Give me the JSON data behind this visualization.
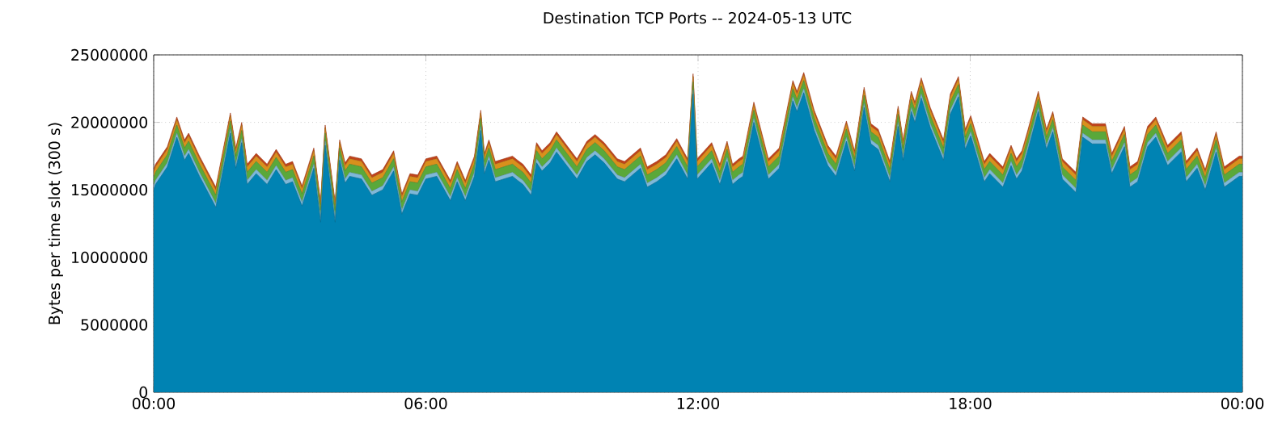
{
  "chart_data": {
    "type": "area",
    "stacked": true,
    "title": "Destination TCP Ports -- 2024-05-13 UTC",
    "ylabel": "Bytes per time slot (300 s)",
    "x": [
      0,
      0.04,
      0.3,
      0.51,
      0.68,
      0.77,
      1.01,
      1.37,
      1.69,
      1.81,
      1.94,
      2.06,
      2.26,
      2.5,
      2.7,
      2.91,
      3.06,
      3.27,
      3.53,
      3.68,
      3.78,
      4.0,
      4.1,
      4.22,
      4.32,
      4.58,
      4.81,
      5.05,
      5.29,
      5.47,
      5.65,
      5.82,
      6.0,
      6.24,
      6.54,
      6.69,
      6.87,
      7.07,
      7.21,
      7.29,
      7.39,
      7.53,
      7.91,
      8.02,
      8.14,
      8.32,
      8.44,
      8.56,
      8.74,
      8.88,
      9.33,
      9.55,
      9.73,
      9.93,
      10.22,
      10.38,
      10.73,
      10.88,
      11.09,
      11.29,
      11.53,
      11.77,
      11.89,
      11.98,
      12.3,
      12.48,
      12.64,
      12.76,
      12.9,
      12.99,
      13.23,
      13.55,
      13.79,
      14.09,
      14.18,
      14.33,
      14.56,
      14.86,
      15.04,
      15.27,
      15.45,
      15.66,
      15.81,
      15.97,
      16.23,
      16.41,
      16.52,
      16.7,
      16.78,
      16.92,
      17.12,
      17.41,
      17.56,
      17.74,
      17.89,
      18.01,
      18.31,
      18.43,
      18.72,
      18.9,
      19.02,
      19.14,
      19.26,
      19.5,
      19.68,
      19.82,
      20.03,
      20.33,
      20.48,
      20.69,
      20.98,
      21.12,
      21.4,
      21.52,
      21.69,
      21.91,
      22.09,
      22.35,
      22.65,
      22.76,
      23.0,
      23.18,
      23.42,
      23.6,
      23.93,
      24.0
    ],
    "series": [
      {
        "color": "#0083b3",
        "values": [
          15000000,
          15400000,
          16700000,
          18900000,
          17200000,
          17700000,
          16000000,
          13700000,
          19200000,
          16600000,
          18500000,
          15400000,
          16200000,
          15400000,
          16500000,
          15400000,
          15600000,
          13800000,
          16600000,
          12600000,
          18300000,
          12600000,
          17200000,
          15500000,
          16000000,
          15800000,
          14600000,
          15000000,
          16400000,
          13200000,
          14700000,
          14600000,
          15800000,
          16000000,
          14200000,
          15600000,
          14200000,
          16000000,
          19400000,
          16200000,
          17200000,
          15600000,
          16000000,
          15700000,
          15400000,
          14600000,
          17000000,
          16400000,
          17000000,
          17800000,
          15800000,
          17100000,
          17600000,
          17000000,
          15800000,
          15600000,
          16600000,
          15200000,
          15600000,
          16100000,
          17300000,
          15800000,
          22100000,
          15800000,
          17000000,
          15400000,
          17100000,
          15400000,
          15800000,
          16000000,
          20000000,
          15800000,
          16600000,
          21600000,
          20800000,
          22200000,
          19400000,
          16800000,
          16000000,
          18600000,
          16400000,
          21100000,
          18400000,
          18000000,
          15600000,
          19700000,
          17200000,
          20800000,
          20000000,
          21800000,
          19600000,
          17200000,
          20600000,
          21900000,
          18000000,
          19000000,
          15600000,
          16200000,
          15200000,
          16800000,
          15800000,
          16400000,
          17800000,
          20800000,
          18000000,
          19300000,
          15800000,
          14800000,
          18900000,
          18400000,
          18400000,
          16200000,
          18200000,
          15200000,
          15600000,
          18200000,
          18900000,
          16800000,
          17800000,
          15600000,
          16600000,
          15000000,
          17800000,
          15200000,
          16000000,
          16000000
        ]
      },
      {
        "color": "#7fb8d8",
        "values": [
          300000,
          300000,
          300000,
          300000,
          300000,
          300000,
          300000,
          300000,
          300000,
          300000,
          300000,
          300000,
          300000,
          300000,
          300000,
          300000,
          300000,
          300000,
          300000,
          300000,
          300000,
          300000,
          300000,
          300000,
          300000,
          300000,
          300000,
          300000,
          300000,
          300000,
          300000,
          300000,
          300000,
          300000,
          300000,
          300000,
          300000,
          300000,
          300000,
          300000,
          300000,
          300000,
          300000,
          300000,
          300000,
          300000,
          300000,
          300000,
          300000,
          300000,
          300000,
          300000,
          300000,
          300000,
          300000,
          300000,
          300000,
          300000,
          300000,
          300000,
          300000,
          300000,
          300000,
          300000,
          300000,
          300000,
          300000,
          300000,
          300000,
          300000,
          300000,
          300000,
          300000,
          300000,
          300000,
          300000,
          300000,
          300000,
          300000,
          300000,
          300000,
          300000,
          300000,
          300000,
          300000,
          300000,
          300000,
          300000,
          300000,
          300000,
          300000,
          300000,
          300000,
          300000,
          300000,
          300000,
          300000,
          300000,
          300000,
          300000,
          300000,
          300000,
          300000,
          300000,
          300000,
          300000,
          300000,
          300000,
          300000,
          300000,
          300000,
          300000,
          300000,
          300000,
          300000,
          300000,
          300000,
          300000,
          300000,
          300000,
          300000,
          300000,
          300000,
          300000,
          300000,
          300000
        ]
      },
      {
        "color": "#5aa83a",
        "values": [
          600000,
          600000,
          600000,
          600000,
          600000,
          600000,
          600000,
          600000,
          600000,
          600000,
          600000,
          600000,
          600000,
          600000,
          600000,
          600000,
          600000,
          600000,
          600000,
          600000,
          600000,
          600000,
          600000,
          600000,
          600000,
          600000,
          600000,
          600000,
          600000,
          600000,
          600000,
          600000,
          600000,
          600000,
          600000,
          600000,
          600000,
          600000,
          600000,
          600000,
          600000,
          600000,
          600000,
          600000,
          600000,
          600000,
          600000,
          600000,
          600000,
          600000,
          600000,
          600000,
          600000,
          600000,
          600000,
          600000,
          600000,
          600000,
          600000,
          600000,
          600000,
          600000,
          600000,
          600000,
          600000,
          600000,
          600000,
          600000,
          600000,
          600000,
          600000,
          600000,
          600000,
          600000,
          600000,
          600000,
          600000,
          600000,
          600000,
          600000,
          600000,
          600000,
          600000,
          600000,
          600000,
          600000,
          600000,
          600000,
          600000,
          600000,
          600000,
          600000,
          600000,
          600000,
          600000,
          600000,
          600000,
          600000,
          600000,
          600000,
          600000,
          600000,
          600000,
          600000,
          600000,
          600000,
          600000,
          600000,
          600000,
          600000,
          600000,
          600000,
          600000,
          600000,
          600000,
          600000,
          600000,
          600000,
          600000,
          600000,
          600000,
          600000,
          600000,
          600000,
          600000,
          600000
        ]
      },
      {
        "color": "#d9901c",
        "values": [
          400000,
          400000,
          400000,
          400000,
          400000,
          400000,
          400000,
          400000,
          400000,
          400000,
          400000,
          400000,
          400000,
          400000,
          400000,
          400000,
          400000,
          400000,
          400000,
          400000,
          400000,
          400000,
          400000,
          400000,
          400000,
          400000,
          400000,
          400000,
          400000,
          400000,
          400000,
          400000,
          400000,
          400000,
          400000,
          400000,
          400000,
          400000,
          400000,
          400000,
          400000,
          400000,
          400000,
          400000,
          400000,
          400000,
          400000,
          400000,
          400000,
          400000,
          400000,
          400000,
          400000,
          400000,
          400000,
          400000,
          400000,
          400000,
          400000,
          400000,
          400000,
          400000,
          400000,
          400000,
          400000,
          400000,
          400000,
          400000,
          400000,
          400000,
          400000,
          400000,
          400000,
          400000,
          400000,
          400000,
          400000,
          400000,
          400000,
          400000,
          400000,
          400000,
          400000,
          400000,
          400000,
          400000,
          400000,
          400000,
          400000,
          400000,
          400000,
          400000,
          400000,
          400000,
          400000,
          400000,
          400000,
          400000,
          400000,
          400000,
          400000,
          400000,
          400000,
          400000,
          400000,
          400000,
          400000,
          400000,
          400000,
          400000,
          400000,
          400000,
          400000,
          400000,
          400000,
          400000,
          400000,
          400000,
          400000,
          400000,
          400000,
          400000,
          400000,
          400000,
          400000,
          400000
        ]
      },
      {
        "color": "#c0431a",
        "values": [
          200000,
          200000,
          200000,
          200000,
          200000,
          200000,
          200000,
          200000,
          200000,
          200000,
          200000,
          200000,
          200000,
          200000,
          200000,
          200000,
          200000,
          200000,
          200000,
          200000,
          200000,
          200000,
          200000,
          200000,
          200000,
          200000,
          200000,
          200000,
          200000,
          200000,
          200000,
          200000,
          200000,
          200000,
          200000,
          200000,
          200000,
          200000,
          200000,
          200000,
          200000,
          200000,
          200000,
          200000,
          200000,
          200000,
          200000,
          200000,
          200000,
          200000,
          200000,
          200000,
          200000,
          200000,
          200000,
          200000,
          200000,
          200000,
          200000,
          200000,
          200000,
          200000,
          200000,
          200000,
          200000,
          200000,
          200000,
          200000,
          200000,
          200000,
          200000,
          200000,
          200000,
          200000,
          200000,
          200000,
          200000,
          200000,
          200000,
          200000,
          200000,
          200000,
          200000,
          200000,
          200000,
          200000,
          200000,
          200000,
          200000,
          200000,
          200000,
          200000,
          200000,
          200000,
          200000,
          200000,
          200000,
          200000,
          200000,
          200000,
          200000,
          200000,
          200000,
          200000,
          200000,
          200000,
          200000,
          200000,
          200000,
          200000,
          200000,
          200000,
          200000,
          200000,
          200000,
          200000,
          200000,
          200000,
          200000,
          200000,
          200000,
          200000,
          200000,
          200000,
          200000,
          200000
        ]
      }
    ],
    "xlim": [
      0,
      24
    ],
    "xticks": [
      {
        "value": 0,
        "label": "00:00"
      },
      {
        "value": 6,
        "label": "06:00"
      },
      {
        "value": 12,
        "label": "12:00"
      },
      {
        "value": 18,
        "label": "18:00"
      },
      {
        "value": 24,
        "label": "00:00"
      }
    ],
    "ylim": [
      0,
      25000000
    ],
    "yticks": [
      0,
      5000000,
      10000000,
      15000000,
      20000000,
      25000000
    ],
    "grid": true
  }
}
